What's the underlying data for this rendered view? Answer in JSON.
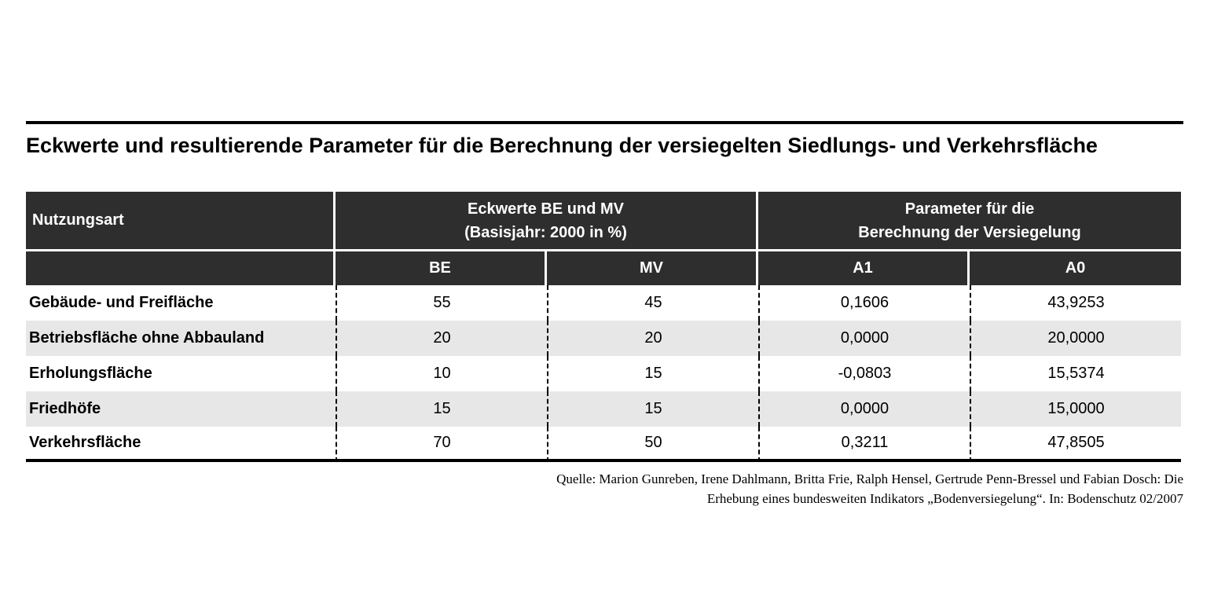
{
  "title": "Eckwerte und resultierende Parameter für die Berechnung der versiegelten Siedlungs- und Verkehrsfläche",
  "colors": {
    "header_bg": "#2e2e2e",
    "header_text": "#ffffff",
    "stripe_bg": "#e7e7e7",
    "rule": "#000000"
  },
  "table": {
    "header": {
      "nutzungsart": "Nutzungsart",
      "group_eckwerte": {
        "line1": "Eckwerte BE und MV",
        "line2": "(Basisjahr: 2000 in %)"
      },
      "group_parameter": {
        "line1": "Parameter für die",
        "line2": "Berechnung der Versiegelung"
      },
      "subcolumns": [
        "BE",
        "MV",
        "A1",
        "A0"
      ]
    },
    "rows": [
      {
        "label": "Gebäude- und Freifläche",
        "be": "55",
        "mv": "45",
        "a1": "0,1606",
        "a0": "43,9253"
      },
      {
        "label": "Betriebsfläche ohne Abbauland",
        "be": "20",
        "mv": "20",
        "a1": "0,0000",
        "a0": "20,0000"
      },
      {
        "label": "Erholungsfläche",
        "be": "10",
        "mv": "15",
        "a1": "-0,0803",
        "a0": "15,5374"
      },
      {
        "label": "Friedhöfe",
        "be": "15",
        "mv": "15",
        "a1": "0,0000",
        "a0": "15,0000"
      },
      {
        "label": "Verkehrsfläche",
        "be": "70",
        "mv": "50",
        "a1": "0,3211",
        "a0": "47,8505"
      }
    ]
  },
  "source": {
    "line1": "Quelle: Marion Gunreben, Irene Dahlmann, Britta Frie, Ralph Hensel, Gertrude Penn-Bressel und Fabian Dosch: Die",
    "line2": "Erhebung eines bundesweiten Indikators „Bodenversiegelung“. In: Bodenschutz 02/2007"
  },
  "chart_data": {
    "type": "table",
    "title": "Eckwerte und resultierende Parameter für die Berechnung der versiegelten Siedlungs- und Verkehrsfläche",
    "column_groups": [
      "Nutzungsart",
      "Eckwerte BE und MV (Basisjahr: 2000 in %)",
      "Parameter für die Berechnung der Versiegelung"
    ],
    "columns": [
      "Nutzungsart",
      "BE",
      "MV",
      "A1",
      "A0"
    ],
    "rows": [
      [
        "Gebäude- und Freifläche",
        55,
        45,
        0.1606,
        43.9253
      ],
      [
        "Betriebsfläche ohne Abbauland",
        20,
        20,
        0.0,
        20.0
      ],
      [
        "Erholungsfläche",
        10,
        15,
        -0.0803,
        15.5374
      ],
      [
        "Friedhöfe",
        15,
        15,
        0.0,
        15.0
      ],
      [
        "Verkehrsfläche",
        70,
        50,
        0.3211,
        47.8505
      ]
    ],
    "source": "Quelle: Marion Gunreben, Irene Dahlmann, Britta Frie, Ralph Hensel, Gertrude Penn-Bressel und Fabian Dosch: Die Erhebung eines bundesweiten Indikators „Bodenversiegelung“. In: Bodenschutz 02/2007"
  }
}
